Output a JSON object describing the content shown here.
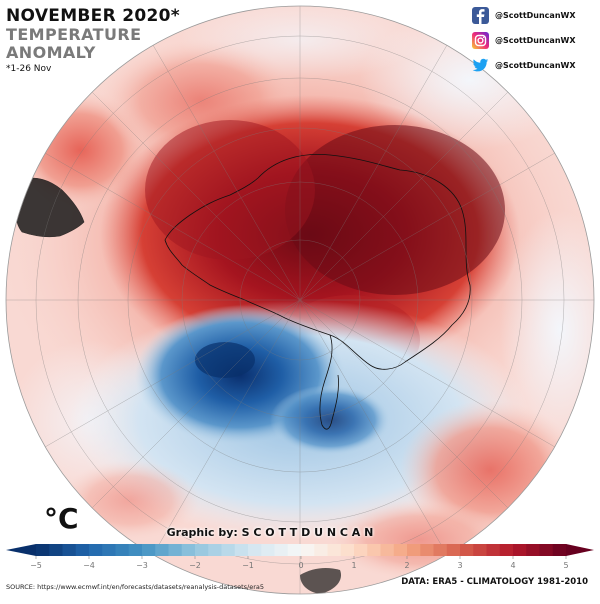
{
  "title": "NOVEMBER 2020*",
  "subtitle_line1": "TEMPERATURE",
  "subtitle_line2": "ANOMALY",
  "date_note": "*1-26 Nov",
  "social": {
    "facebook_handle": "@ScottDuncanWX",
    "instagram_handle": "@ScottDuncanWX",
    "twitter_handle": "@ScottDuncanWX"
  },
  "unit": "°C",
  "credit": "Graphic by: S C O T T  D U N C A N",
  "source": "SOURCE: https://www.ecmwf.int/en/forecasts/datasets/reanalysis-datasets/era5",
  "data_note": "DATA: ERA5 - CLIMATOLOGY 1981-2010",
  "colorbar": {
    "min": -5,
    "max": 5,
    "ticks": [
      "−5",
      "−4",
      "−3",
      "−2",
      "−1",
      "0",
      "1",
      "2",
      "3",
      "4",
      "5"
    ],
    "steps": 40,
    "colors": [
      "#08306b",
      "#2166ac",
      "#4393c3",
      "#92c5de",
      "#d1e5f0",
      "#f7f7f7",
      "#fddbc7",
      "#f4a582",
      "#d6604d",
      "#b2182b",
      "#67001f"
    ]
  },
  "map": {
    "projection": "orthographic-south-polar",
    "ocean_base_color": "#fbe3e0"
  }
}
